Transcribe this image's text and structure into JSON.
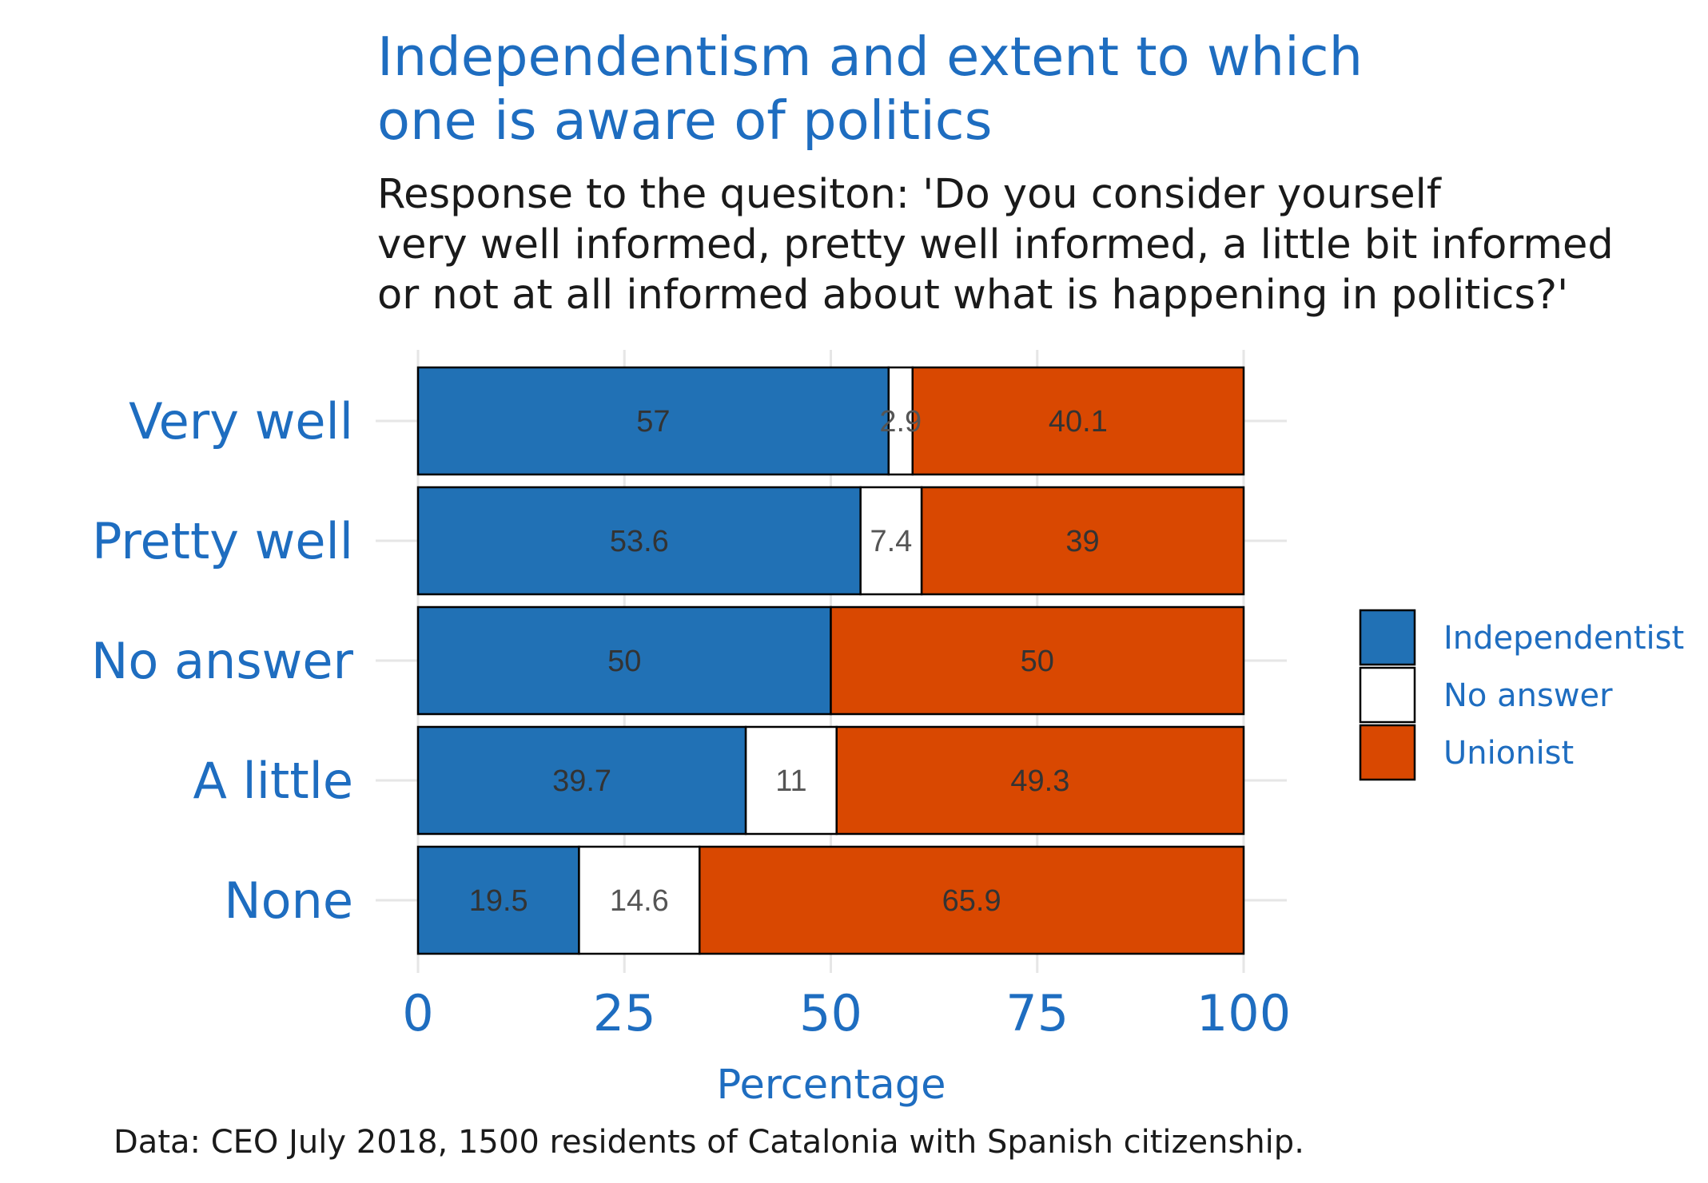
{
  "chart_data": {
    "type": "bar",
    "orientation": "horizontal",
    "stacked": true,
    "title": "Independentism and extent to which one is aware of politics",
    "title_lines": [
      "Independentism and extent to which",
      "one is aware of politics"
    ],
    "subtitle_lines": [
      "Response to the quesiton: 'Do you consider yourself",
      "very well informed, pretty well informed, a little bit informed",
      "or not at all informed about what is happening in politics?'"
    ],
    "categories": [
      "Very well",
      "Pretty well",
      "No answer",
      "A little",
      "None"
    ],
    "series": [
      {
        "name": "Independentist",
        "color": "#2171b5",
        "values": [
          57,
          53.6,
          50,
          39.7,
          19.5
        ]
      },
      {
        "name": "No answer",
        "color": "#ffffff",
        "values": [
          2.9,
          7.4,
          0,
          11,
          14.6
        ]
      },
      {
        "name": "Unionist",
        "color": "#d94801",
        "values": [
          40.1,
          39,
          50,
          49.3,
          65.9
        ]
      }
    ],
    "value_labels": [
      [
        "57",
        "2.9",
        "40.1"
      ],
      [
        "53.6",
        "7.4",
        "39"
      ],
      [
        "50",
        "",
        "50"
      ],
      [
        "39.7",
        "11",
        "49.3"
      ],
      [
        "19.5",
        "14.6",
        "65.9"
      ]
    ],
    "xlabel": "Percentage",
    "ylabel": "",
    "xlim": [
      0,
      100
    ],
    "xticks": [
      "0",
      "25",
      "50",
      "75",
      "100"
    ],
    "grid": true,
    "legend_position": "right",
    "caption": "Data: CEO July 2018, 1500 residents of Catalonia with Spanish citizenship."
  }
}
